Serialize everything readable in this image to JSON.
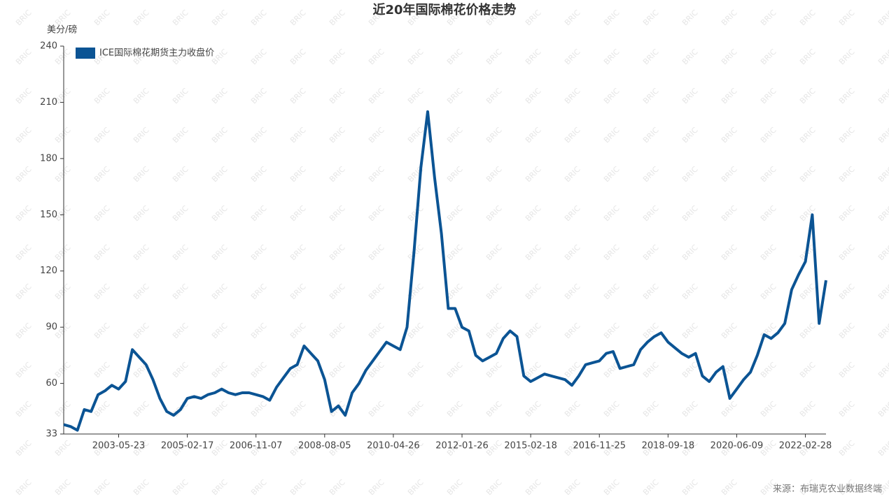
{
  "chart_data": {
    "type": "line",
    "title": "近20年国际棉花价格走势",
    "y_label": "美分/磅",
    "source": "来源：布瑞克农业数据终端",
    "watermark": "BRIC",
    "categories": [
      null,
      null,
      null,
      null,
      null,
      null,
      null,
      null,
      "2003-05-23",
      null,
      null,
      null,
      null,
      null,
      null,
      null,
      null,
      null,
      "2005-02-17",
      null,
      null,
      null,
      null,
      null,
      null,
      null,
      null,
      null,
      "2006-11-07",
      null,
      null,
      null,
      null,
      null,
      null,
      null,
      null,
      null,
      "2008-08-05",
      null,
      null,
      null,
      null,
      null,
      null,
      null,
      null,
      null,
      "2010-04-26",
      null,
      null,
      null,
      null,
      null,
      null,
      null,
      null,
      null,
      "2012-01-26",
      null,
      null,
      null,
      null,
      null,
      null,
      null,
      null,
      null,
      "2015-02-18",
      null,
      null,
      null,
      null,
      null,
      null,
      null,
      null,
      null,
      "2016-11-25",
      null,
      null,
      null,
      null,
      null,
      null,
      null,
      null,
      null,
      "2018-09-18",
      null,
      null,
      null,
      null,
      null,
      null,
      null,
      null,
      null,
      "2020-06-09",
      null,
      null,
      null,
      null,
      null,
      null,
      null,
      null,
      null,
      "2022-02-28",
      null,
      null,
      null
    ],
    "series": [
      {
        "name": "ICE国际棉花期货主力收盘价",
        "color": "#0b5494",
        "values": [
          38,
          37,
          35,
          46,
          45,
          54,
          56,
          59,
          57,
          61,
          78,
          74,
          70,
          62,
          52,
          45,
          43,
          46,
          52,
          53,
          52,
          54,
          55,
          57,
          55,
          54,
          55,
          55,
          54,
          53,
          51,
          58,
          63,
          68,
          70,
          80,
          76,
          72,
          62,
          45,
          48,
          43,
          55,
          60,
          67,
          72,
          77,
          82,
          80,
          78,
          90,
          130,
          175,
          205,
          170,
          140,
          100,
          100,
          90,
          88,
          75,
          72,
          74,
          76,
          84,
          88,
          85,
          64,
          61,
          63,
          65,
          64,
          63,
          62,
          59,
          64,
          70,
          71,
          72,
          76,
          77,
          68,
          69,
          70,
          78,
          82,
          85,
          87,
          82,
          79,
          76,
          74,
          76,
          64,
          61,
          66,
          69,
          52,
          57,
          62,
          66,
          75,
          86,
          84,
          87,
          92,
          110,
          118,
          125,
          150,
          92,
          115
        ]
      }
    ],
    "ylim": [
      33,
      240
    ],
    "yticks": [
      33,
      60,
      90,
      120,
      150,
      180,
      210,
      240
    ],
    "legend": "top-left"
  }
}
